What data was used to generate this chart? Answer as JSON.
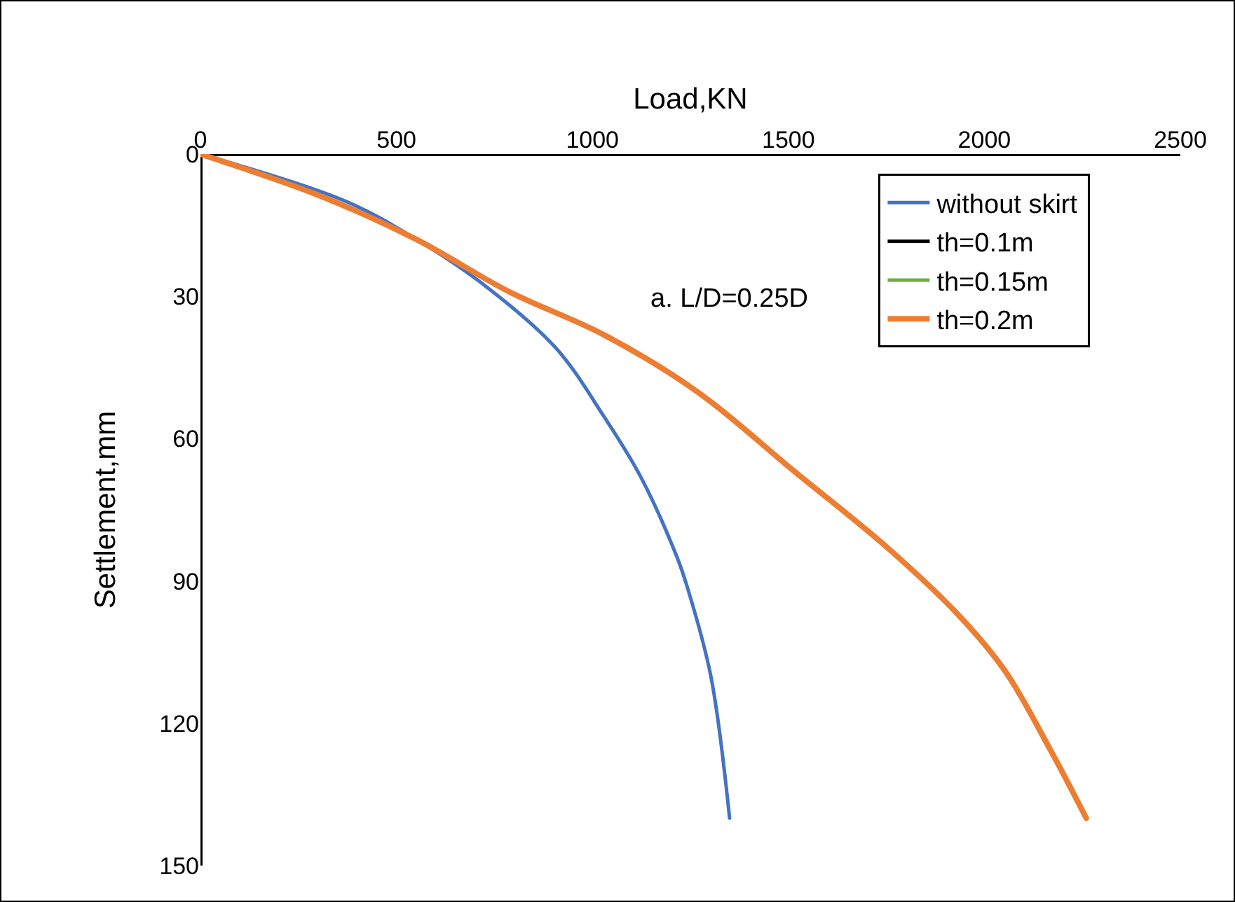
{
  "chart_data": {
    "type": "line",
    "xlabel": "Load,KN",
    "ylabel": "Settlement,mm",
    "annotations": [
      "a. L/D=0.25D"
    ],
    "xlim": [
      0,
      2500
    ],
    "xticks": [
      0,
      500,
      1000,
      1500,
      2000,
      2500
    ],
    "ylim": [
      150,
      0
    ],
    "yticks": [
      0,
      30,
      60,
      90,
      120,
      150
    ],
    "grid": false,
    "legend": "top right",
    "marker": "none",
    "line_style": "solid",
    "series": [
      {
        "name": "without skirt",
        "color": "#4472c4",
        "x": [
          0,
          372,
          551,
          730,
          908,
          1027,
          1123,
          1216,
          1241,
          1302,
          1350
        ],
        "values": [
          0,
          10,
          18,
          28,
          41,
          55,
          68,
          85,
          91,
          110,
          140
        ]
      },
      {
        "name": "th=0.1m",
        "color": "#000000"
      },
      {
        "name": "th=0.15m",
        "color": "#70ad47"
      },
      {
        "name": "th=0.2m",
        "color": "#ed7d31",
        "x": [
          0,
          311,
          551,
          787,
          1027,
          1266,
          1517,
          1753,
          1932,
          2053,
          2171,
          2260
        ],
        "values": [
          0,
          9,
          18,
          29,
          38,
          50,
          67,
          83,
          97,
          109,
          126,
          140
        ]
      }
    ]
  }
}
